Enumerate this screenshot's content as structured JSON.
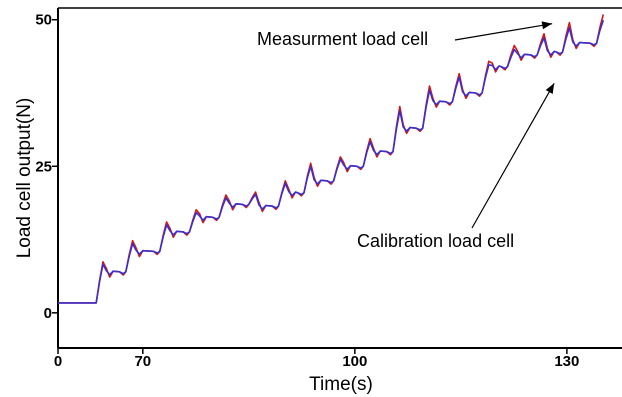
{
  "chart_data": {
    "type": "line",
    "xlabel": "Time(s)",
    "ylabel": "Load cell output(N)",
    "xlim": [
      0,
      133
    ],
    "ylim": [
      -6,
      52
    ],
    "x_ticks": [
      {
        "value": 0,
        "label": "0"
      },
      {
        "value": 20,
        "label": "70"
      },
      {
        "value": 70,
        "label": "100"
      },
      {
        "value": 120,
        "label": "130"
      }
    ],
    "y_ticks": [
      {
        "value": 0,
        "label": "0"
      },
      {
        "value": 25,
        "label": "25"
      },
      {
        "value": 50,
        "label": "50"
      }
    ],
    "grid": false,
    "colors": {
      "measurement": "#d01818",
      "calibration": "#3a2fd0"
    },
    "step_times": [
      9,
      16,
      24,
      31,
      38,
      45,
      52,
      58,
      65,
      72,
      79,
      86,
      93,
      100,
      106,
      113,
      119,
      127
    ],
    "step_levels": [
      1.7,
      7,
      10.5,
      13.8,
      16.3,
      18.5,
      18.2,
      20.5,
      22.5,
      25,
      27.5,
      31.5,
      36,
      37.5,
      42,
      44,
      44.5,
      46
    ],
    "series": [
      {
        "key": "measurement",
        "name": "Measurment load cell",
        "peaks": [
          8.7,
          12.3,
          15.5,
          17.6,
          20.1,
          20.6,
          22.5,
          25.5,
          26.6,
          29.7,
          35.2,
          38.7,
          40.8,
          42.9,
          45.6,
          47.6,
          49.5,
          50.9
        ]
      },
      {
        "key": "calibration",
        "name": "Calibration load cell",
        "peaks": [
          8.3,
          11.8,
          15.0,
          17.1,
          19.6,
          20.2,
          22.1,
          25.0,
          26.2,
          29.2,
          34.5,
          38.0,
          40.2,
          42.3,
          44.9,
          46.9,
          48.6,
          49.9
        ]
      }
    ],
    "annotations": [
      {
        "text": "Measurment load cell",
        "series": "measurement",
        "arrow_to": {
          "x": 117,
          "y": 49.5
        }
      },
      {
        "text": "Calibration load cell",
        "series": "calibration",
        "arrow_to": {
          "x": 117,
          "y": 39.5
        }
      }
    ]
  }
}
